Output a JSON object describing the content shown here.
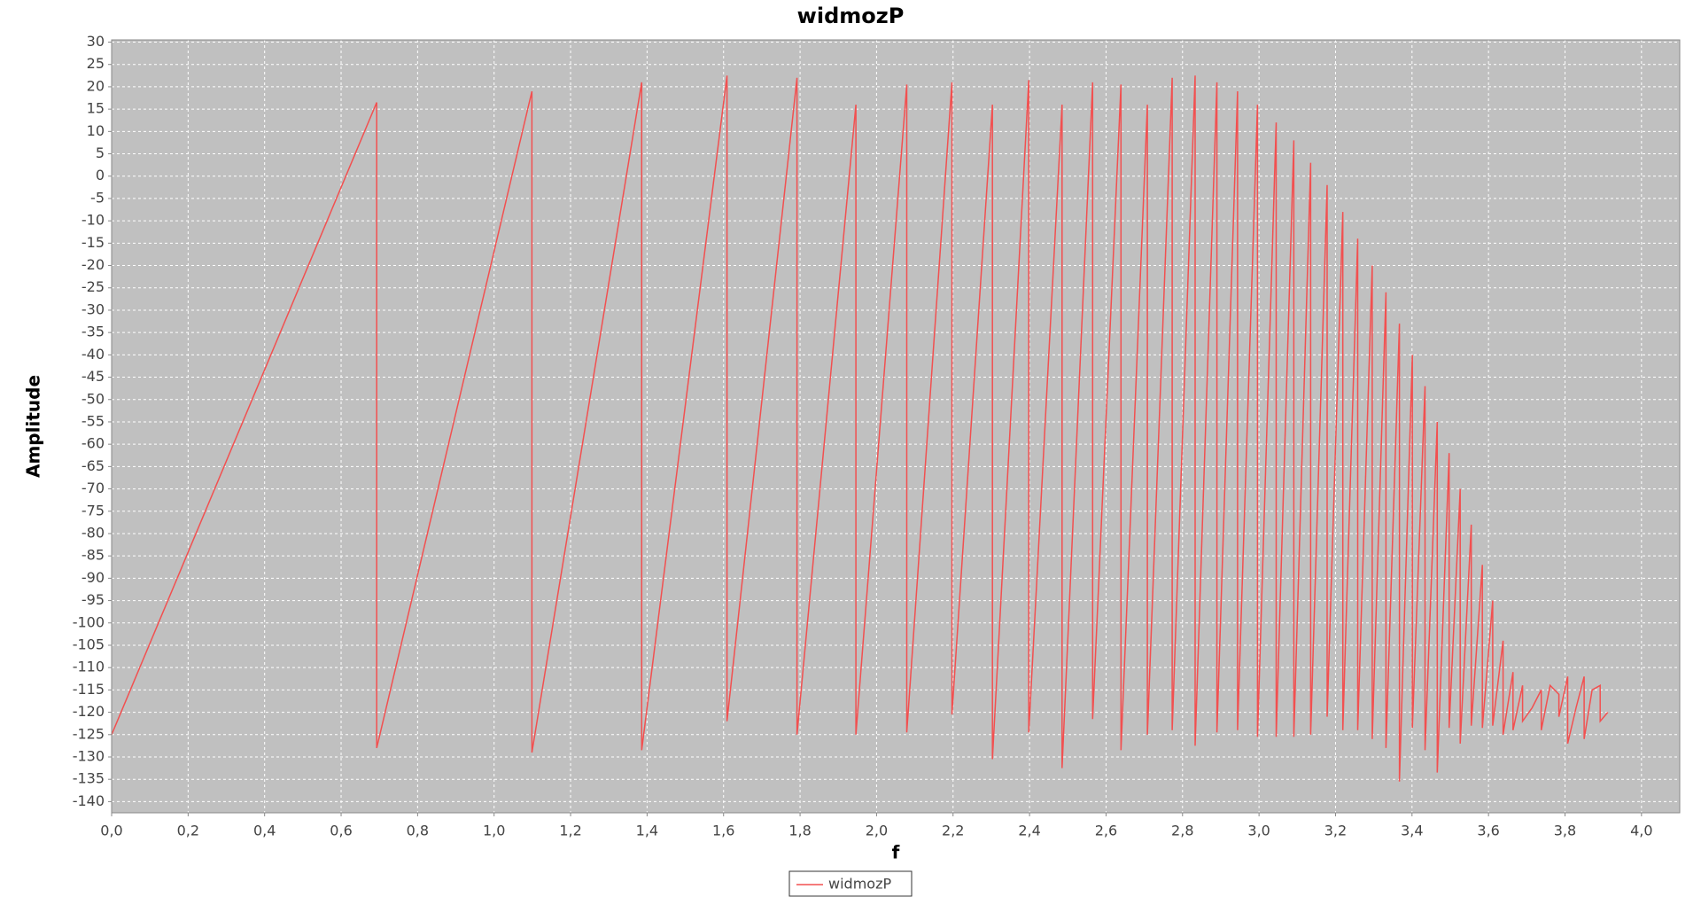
{
  "chart_data": {
    "type": "line",
    "title": "widmozP",
    "x_label": "f",
    "y_label": "Amplitude",
    "x": [
      0,
      0.693,
      0.693,
      1.099,
      1.099,
      1.386,
      1.386,
      1.609,
      1.609,
      1.792,
      1.792,
      1.946,
      1.946,
      2.079,
      2.079,
      2.197,
      2.197,
      2.303,
      2.303,
      2.398,
      2.398,
      2.485,
      2.485,
      2.565,
      2.565,
      2.639,
      2.639,
      2.708,
      2.708,
      2.773,
      2.773,
      2.833,
      2.833,
      2.89,
      2.89,
      2.944,
      2.944,
      2.996,
      2.996,
      3.045,
      3.045,
      3.091,
      3.091,
      3.135,
      3.135,
      3.178,
      3.178,
      3.219,
      3.219,
      3.258,
      3.258,
      3.296,
      3.296,
      3.332,
      3.332,
      3.367,
      3.367,
      3.401,
      3.401,
      3.434,
      3.434,
      3.466,
      3.466,
      3.497,
      3.497,
      3.526,
      3.526,
      3.555,
      3.555,
      3.584,
      3.584,
      3.611,
      3.611,
      3.638,
      3.638,
      3.664,
      3.664,
      3.689,
      3.689,
      3.714,
      3.738,
      3.738,
      3.761,
      3.784,
      3.784,
      3.807,
      3.807,
      3.829,
      3.85,
      3.85,
      3.871,
      3.892,
      3.892,
      3.912
    ],
    "series": [
      {
        "name": "widmozP",
        "color": "#f25050",
        "values": [
          -125,
          16.5,
          -128,
          19,
          -129,
          21,
          -128.5,
          22.5,
          -122,
          22,
          -125,
          16,
          -125,
          20.5,
          -124.5,
          21,
          -120.5,
          16,
          -130.5,
          21.5,
          -124.5,
          16,
          -132.5,
          21,
          -121.5,
          20.5,
          -128.5,
          16,
          -125,
          22,
          -124,
          22.5,
          -127.5,
          21,
          -124.5,
          19,
          -124,
          16,
          -125.5,
          12,
          -125.5,
          8,
          -125.5,
          3,
          -125,
          -2,
          -121,
          -8,
          -124,
          -14,
          -124,
          -20,
          -126,
          -26,
          -128,
          -33,
          -135.5,
          -40,
          -123.5,
          -47,
          -128.5,
          -55,
          -133.5,
          -62,
          -123.5,
          -70,
          -127,
          -78,
          -123,
          -87,
          -123.5,
          -95,
          -123,
          -104,
          -125,
          -111,
          -124,
          -114,
          -122,
          -119,
          -115,
          -124,
          -114,
          -116,
          -121,
          -112,
          -127,
          -119,
          -112,
          -126,
          -115,
          -114,
          -122,
          -120
        ]
      }
    ],
    "xlim": [
      0,
      4.1
    ],
    "ylim": [
      -142.5,
      30.5
    ],
    "xticks": [
      {
        "value": 0,
        "label": "0,0"
      },
      {
        "value": 0.2,
        "label": "0,2"
      },
      {
        "value": 0.4,
        "label": "0,4"
      },
      {
        "value": 0.6,
        "label": "0,6"
      },
      {
        "value": 0.8,
        "label": "0,8"
      },
      {
        "value": 1.0,
        "label": "1,0"
      },
      {
        "value": 1.2,
        "label": "1,2"
      },
      {
        "value": 1.4,
        "label": "1,4"
      },
      {
        "value": 1.6,
        "label": "1,6"
      },
      {
        "value": 1.8,
        "label": "1,8"
      },
      {
        "value": 2.0,
        "label": "2,0"
      },
      {
        "value": 2.2,
        "label": "2,2"
      },
      {
        "value": 2.4,
        "label": "2,4"
      },
      {
        "value": 2.6,
        "label": "2,6"
      },
      {
        "value": 2.8,
        "label": "2,8"
      },
      {
        "value": 3.0,
        "label": "3,0"
      },
      {
        "value": 3.2,
        "label": "3,2"
      },
      {
        "value": 3.4,
        "label": "3,4"
      },
      {
        "value": 3.6,
        "label": "3,6"
      },
      {
        "value": 3.8,
        "label": "3,8"
      },
      {
        "value": 4.0,
        "label": "4,0"
      }
    ],
    "yticks": [
      30,
      25,
      20,
      15,
      10,
      5,
      0,
      -5,
      -10,
      -15,
      -20,
      -25,
      -30,
      -35,
      -40,
      -45,
      -50,
      -55,
      -60,
      -65,
      -70,
      -75,
      -80,
      -85,
      -90,
      -95,
      -100,
      -105,
      -110,
      -115,
      -120,
      -125,
      -130,
      -135,
      -140
    ],
    "grid": true,
    "legend": "bottom"
  }
}
